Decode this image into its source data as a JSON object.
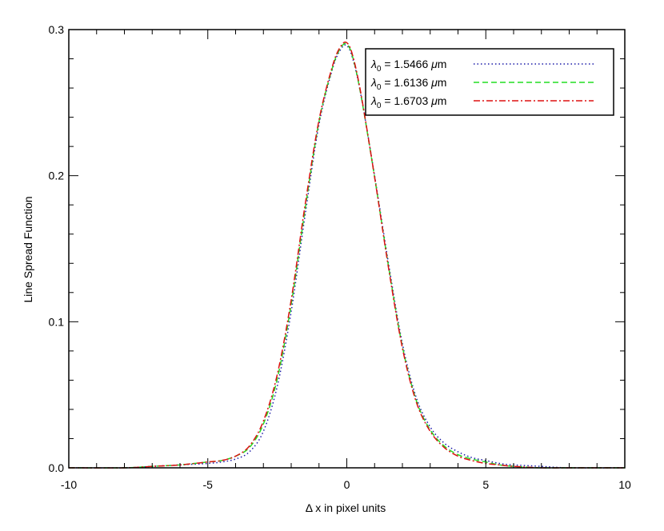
{
  "chart_data": {
    "type": "line",
    "xlabel": "Δ x in pixel units",
    "ylabel": "Line Spread Function",
    "xlim": [
      -10,
      10
    ],
    "ylim": [
      0,
      0.3
    ],
    "x_ticks": [
      -10,
      -5,
      0,
      5,
      10
    ],
    "x_tick_labels": [
      "-10",
      "-5",
      "0",
      "5",
      "10"
    ],
    "y_ticks": [
      0,
      0.1,
      0.2,
      0.3
    ],
    "y_tick_labels": [
      "0.0",
      "0.1",
      "0.2",
      "0.3"
    ],
    "grid": false,
    "legend": {
      "position": "top-right",
      "entries": [
        {
          "prefix": "λ",
          "sub": "0",
          "text": " = 1.5466 ",
          "unit_mu": "μ",
          "unit": "m"
        },
        {
          "prefix": "λ",
          "sub": "0",
          "text": " = 1.6136 ",
          "unit_mu": "μ",
          "unit": "m"
        },
        {
          "prefix": "λ",
          "sub": "0",
          "text": " = 1.6703 ",
          "unit_mu": "μ",
          "unit": "m"
        }
      ]
    },
    "series": [
      {
        "color": "#1a1aa8",
        "dash": "1.5,3",
        "x": [
          -10,
          -8,
          -7,
          -6,
          -5,
          -4.5,
          -4,
          -3.5,
          -3,
          -2.5,
          -2,
          -1.5,
          -1,
          -0.5,
          -0.2,
          0,
          0.2,
          0.5,
          1,
          1.5,
          2,
          2.5,
          3,
          3.5,
          4,
          4.5,
          5,
          5.5,
          6,
          7,
          8,
          10
        ],
        "y": [
          0,
          0,
          0.001,
          0.002,
          0.003,
          0.004,
          0.006,
          0.011,
          0.025,
          0.056,
          0.107,
          0.173,
          0.235,
          0.274,
          0.287,
          0.289,
          0.281,
          0.256,
          0.2,
          0.14,
          0.085,
          0.048,
          0.028,
          0.017,
          0.011,
          0.007,
          0.005,
          0.003,
          0.002,
          0.001,
          0,
          0
        ]
      },
      {
        "color": "#22dd22",
        "dash": "7,4",
        "x": [
          -10,
          -8,
          -7,
          -6,
          -5,
          -4.5,
          -4,
          -3.5,
          -3,
          -2.5,
          -2,
          -1.5,
          -1,
          -0.5,
          -0.2,
          0,
          0.2,
          0.5,
          1,
          1.5,
          2,
          2.5,
          3,
          3.5,
          4,
          4.5,
          5,
          5.5,
          6,
          7,
          8,
          10
        ],
        "y": [
          0,
          0,
          0.001,
          0.002,
          0.004,
          0.005,
          0.008,
          0.014,
          0.03,
          0.061,
          0.112,
          0.177,
          0.237,
          0.275,
          0.288,
          0.29,
          0.282,
          0.256,
          0.199,
          0.138,
          0.083,
          0.046,
          0.026,
          0.015,
          0.009,
          0.006,
          0.004,
          0.002,
          0.001,
          0,
          0,
          0
        ]
      },
      {
        "color": "#dd1111",
        "dash": "8,3,2,3",
        "x": [
          -10,
          -8,
          -7,
          -6,
          -5,
          -4.5,
          -4,
          -3.5,
          -3,
          -2.5,
          -2,
          -1.5,
          -1,
          -0.5,
          -0.2,
          0,
          0.2,
          0.5,
          1,
          1.5,
          2,
          2.5,
          3,
          3.5,
          4,
          4.5,
          5,
          5.5,
          6,
          7,
          8,
          10
        ],
        "y": [
          0,
          0,
          0.001,
          0.002,
          0.004,
          0.005,
          0.008,
          0.015,
          0.032,
          0.064,
          0.115,
          0.18,
          0.238,
          0.276,
          0.289,
          0.291,
          0.283,
          0.257,
          0.199,
          0.137,
          0.082,
          0.045,
          0.025,
          0.014,
          0.008,
          0.005,
          0.003,
          0.002,
          0.001,
          0,
          0,
          0
        ]
      }
    ]
  }
}
